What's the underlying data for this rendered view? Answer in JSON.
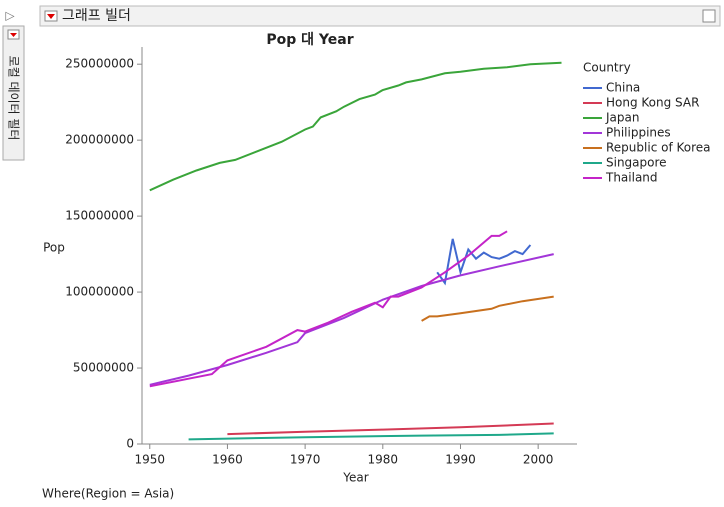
{
  "ui": {
    "panel_title": "그래프 빌더",
    "side_label": "로컬 데이터 필터"
  },
  "chart_data": {
    "type": "line",
    "title": "Pop 대 Year",
    "x_label": "Year",
    "y_label": "Pop",
    "legend_title": "Country",
    "legend": "right",
    "grid": false,
    "footer": "Where(Region = Asia)",
    "xlim": [
      1949,
      2005
    ],
    "xticks": [
      1950,
      1960,
      1970,
      1980,
      1990,
      2000
    ],
    "ylim": [
      0,
      260000000
    ],
    "yticks": [
      0,
      50000000,
      100000000,
      150000000,
      200000000,
      250000000
    ],
    "series": [
      {
        "name": "China",
        "color": "#4169d0",
        "x": [
          1987,
          1988,
          1989,
          1990,
          1991,
          1992,
          1993,
          1994,
          1995,
          1996,
          1997,
          1998,
          1999
        ],
        "values": [
          113000000,
          106000000,
          135000000,
          113000000,
          128000000,
          122000000,
          126000000,
          123000000,
          122000000,
          124000000,
          127000000,
          125000000,
          131000000
        ]
      },
      {
        "name": "Hong Kong SAR",
        "color": "#d43a55",
        "x": [
          1960,
          1970,
          1980,
          1990,
          1995,
          2002
        ],
        "values": [
          6500000,
          8000000,
          9500000,
          11000000,
          12000000,
          13500000
        ]
      },
      {
        "name": "Japan",
        "color": "#3aa53a",
        "x": [
          1950,
          1953,
          1956,
          1959,
          1961,
          1964,
          1967,
          1970,
          1971,
          1972,
          1974,
          1975,
          1977,
          1979,
          1980,
          1982,
          1983,
          1985,
          1988,
          1990,
          1993,
          1996,
          1999,
          2003
        ],
        "values": [
          167000000,
          174000000,
          180000000,
          185000000,
          187000000,
          193000000,
          199000000,
          207000000,
          209000000,
          215000000,
          219000000,
          222000000,
          227000000,
          230000000,
          233000000,
          236000000,
          238000000,
          240000000,
          244000000,
          245000000,
          247000000,
          248000000,
          250000000,
          251000000
        ]
      },
      {
        "name": "Philippines",
        "color": "#a236d8",
        "x": [
          1950,
          1955,
          1960,
          1965,
          1969,
          1970,
          1975,
          1980,
          1985,
          1990,
          1995,
          2002
        ],
        "values": [
          39000000,
          45000000,
          52000000,
          60000000,
          67000000,
          73000000,
          83000000,
          95000000,
          104000000,
          111000000,
          117000000,
          125000000
        ]
      },
      {
        "name": "Republic of Korea",
        "color": "#c8701e",
        "x": [
          1985,
          1986,
          1987,
          1990,
          1994,
          1995,
          1998,
          2002
        ],
        "values": [
          81000000,
          84000000,
          84000000,
          86000000,
          89000000,
          91000000,
          94000000,
          97000000
        ]
      },
      {
        "name": "Singapore",
        "color": "#1fa88a",
        "x": [
          1955,
          1970,
          1985,
          1995,
          2002
        ],
        "values": [
          3000000,
          4500000,
          5500000,
          6000000,
          7000000
        ]
      },
      {
        "name": "Thailand",
        "color": "#c424c8",
        "x": [
          1950,
          1955,
          1958,
          1960,
          1965,
          1969,
          1970,
          1973,
          1976,
          1979,
          1980,
          1981,
          1982,
          1985,
          1988,
          1991,
          1994,
          1995,
          1996
        ],
        "values": [
          38000000,
          43000000,
          46000000,
          55000000,
          64000000,
          75000000,
          74000000,
          80000000,
          87000000,
          93000000,
          90000000,
          97000000,
          97000000,
          103000000,
          113000000,
          124000000,
          137000000,
          137000000,
          140000000
        ]
      }
    ]
  }
}
